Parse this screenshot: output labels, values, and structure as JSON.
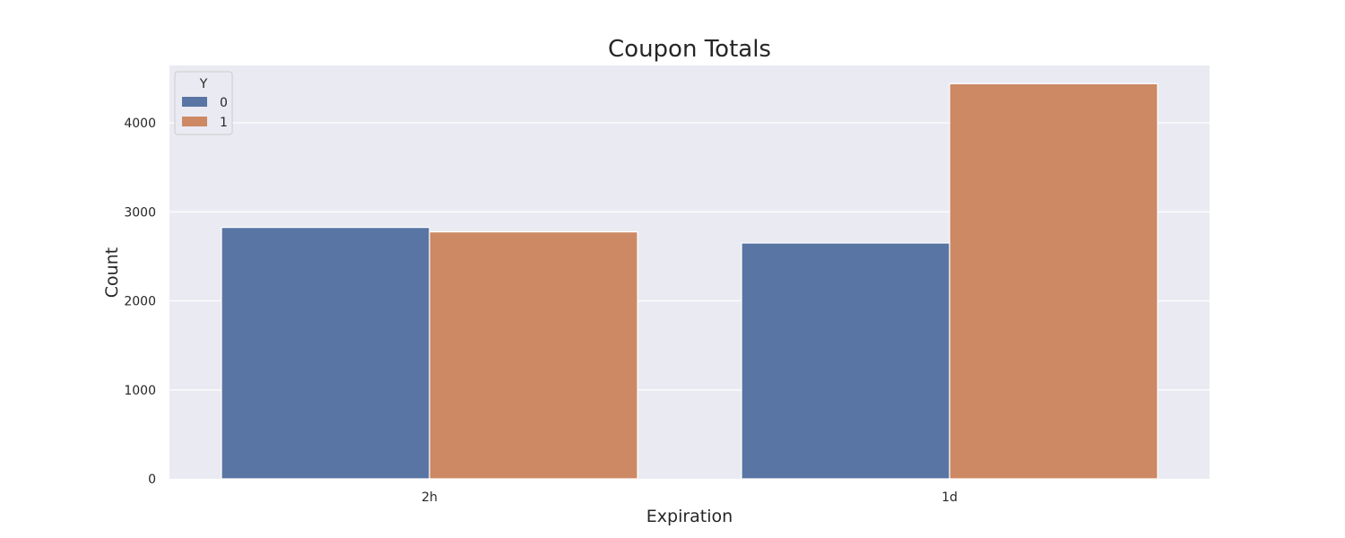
{
  "chart_data": {
    "type": "bar",
    "title": "Coupon Totals",
    "xlabel": "Expiration",
    "ylabel": "Count",
    "categories": [
      "2h",
      "1d"
    ],
    "series": [
      {
        "name": "0",
        "values": [
          2825,
          2650
        ],
        "color": "#5975a4"
      },
      {
        "name": "1",
        "values": [
          2775,
          4440
        ],
        "color": "#cc8963"
      }
    ],
    "ylim": [
      0,
      4645
    ],
    "yticks": [
      0,
      1000,
      2000,
      3000,
      4000
    ],
    "grid": true,
    "legend": {
      "title": "Y",
      "placement": "top-left"
    },
    "background": "#eaeaf2",
    "grid_color": "#ffffff"
  }
}
